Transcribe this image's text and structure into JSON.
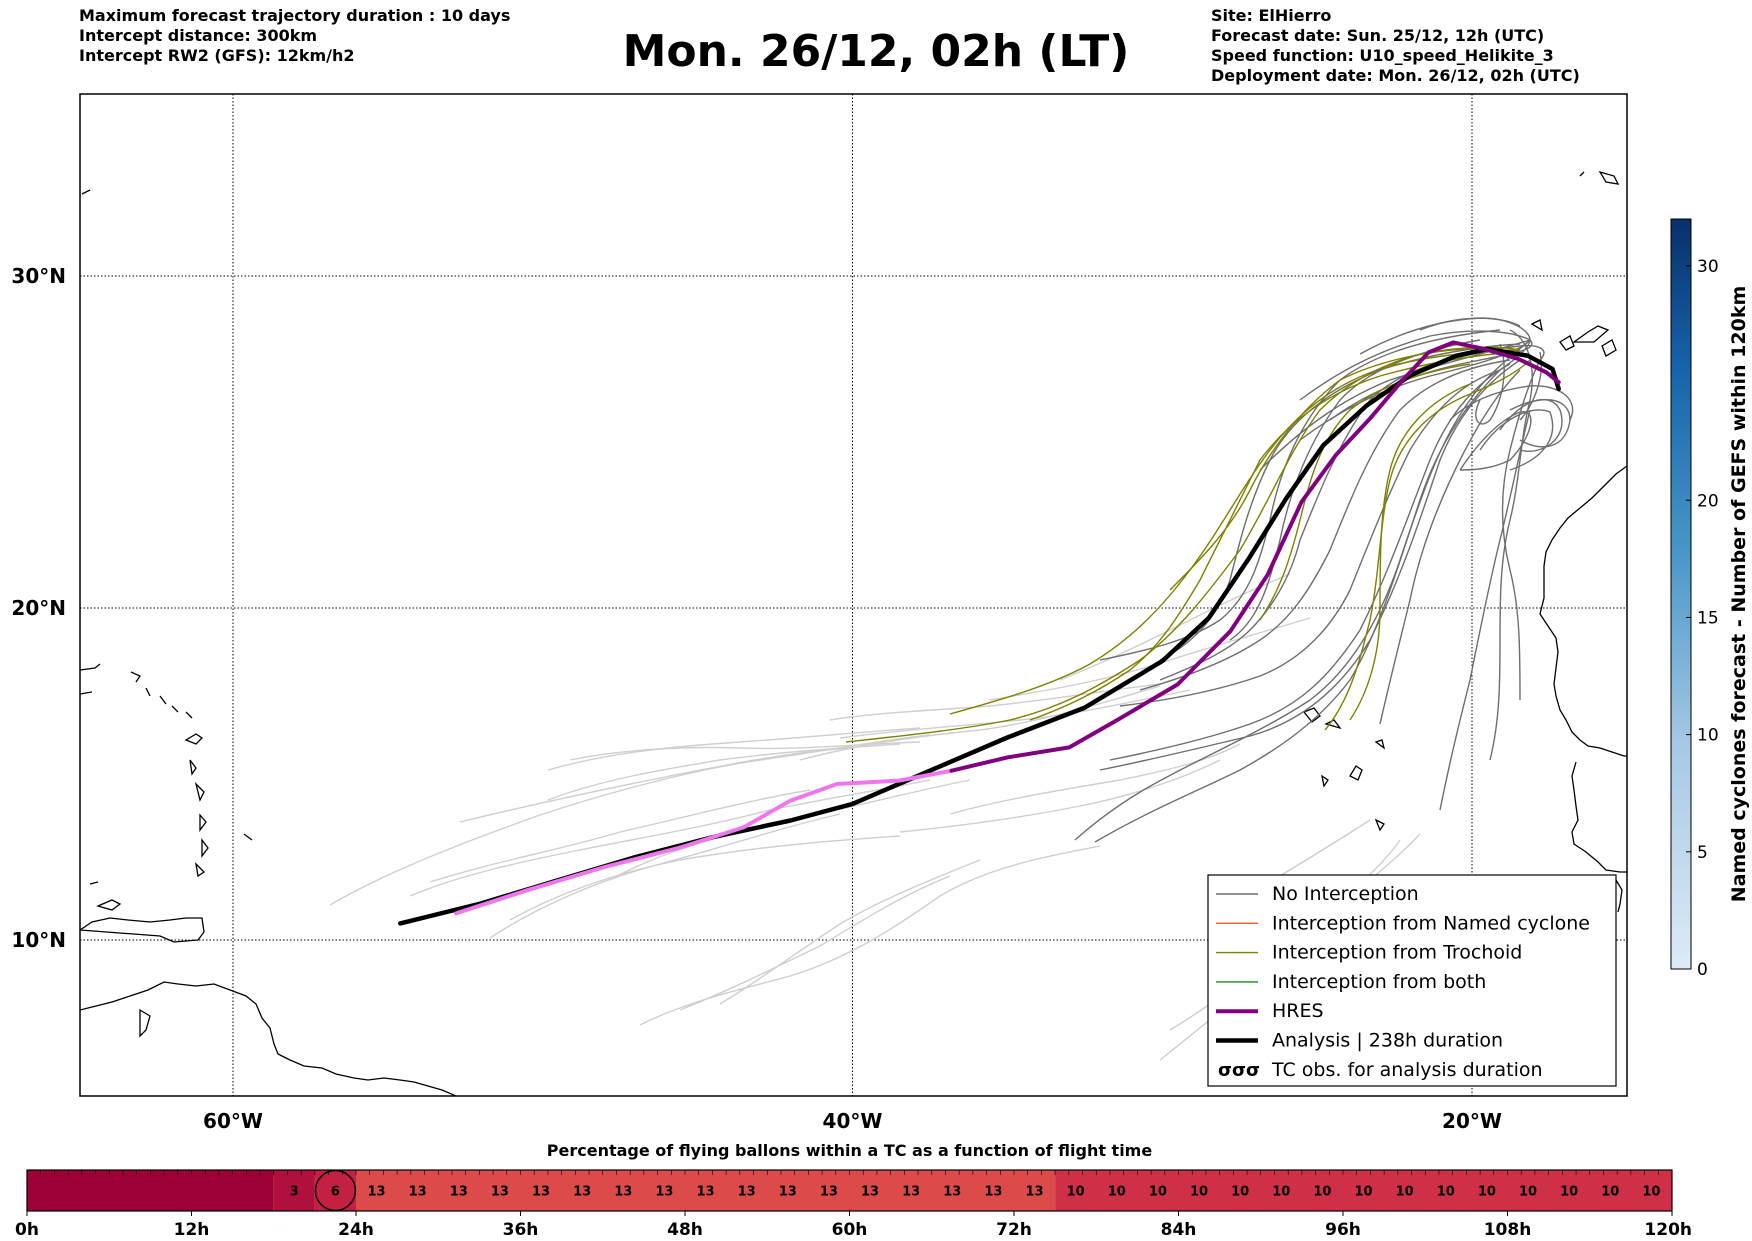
{
  "header": {
    "left_lines": [
      "Maximum forecast trajectory duration : 10 days",
      "Intercept distance: 300km",
      "Intercept RW2 (GFS):  12km/h2"
    ],
    "title": "Mon. 26/12, 02h (LT)",
    "right_lines": [
      "Site: ElHierro",
      "Forecast date: Sun. 25/12, 12h (UTC)",
      "Speed function: U10_speed_Helikite_3",
      "Deployment date: Mon. 26/12, 02h (UTC)"
    ]
  },
  "colors": {
    "no_interception": "#6e6e6e",
    "faded_track": "#cfcfcf",
    "named_cyclone": "#ff5a1f",
    "trochoid": "#808000",
    "both": "#1a8a1a",
    "hres": "#800080",
    "hres_early": "#ee77ee",
    "analysis": "#000000",
    "timeline_dark": "#9e0038",
    "timeline_mid": "#cf3047",
    "timeline_light": "#dd4a4a",
    "colorbar_top": "#08306b",
    "colorbar_bottom": "#deebf7"
  },
  "chart_data": [
    {
      "type": "line",
      "title": "",
      "x_ticks": [
        "60°W",
        "40°W",
        "20°W"
      ],
      "x_tick_values": [
        -60,
        -40,
        -20
      ],
      "y_ticks": [
        "30°N",
        "20°N",
        "10°N"
      ],
      "y_tick_values": [
        30,
        20,
        10
      ],
      "xlim": [
        -65,
        -15
      ],
      "ylim": [
        5.5,
        34.8
      ],
      "grid": true,
      "legend_placement": "bottom-right",
      "legend": [
        "No Interception",
        "Interception from Named cyclone",
        "Interception from Trochoid",
        "Interception from both",
        "HRES",
        "Analysis | 238h duration",
        "TC obs. for analysis duration"
      ],
      "legend_tc_symbol": "σσσ",
      "series": [
        {
          "name": "Analysis | 238h duration",
          "kind": "analysis",
          "points": [
            [
              -54.6,
              10.5
            ],
            [
              -52.0,
              11.1
            ],
            [
              -49.5,
              11.8
            ],
            [
              -47.0,
              12.5
            ],
            [
              -44.5,
              13.1
            ],
            [
              -42.0,
              13.6
            ],
            [
              -40.0,
              14.1
            ],
            [
              -37.5,
              15.1
            ],
            [
              -35.0,
              16.1
            ],
            [
              -32.5,
              17.0
            ],
            [
              -30.0,
              18.4
            ],
            [
              -28.5,
              19.7
            ],
            [
              -27.2,
              21.5
            ],
            [
              -26.0,
              23.3
            ],
            [
              -24.8,
              24.9
            ],
            [
              -23.4,
              26.1
            ],
            [
              -22.0,
              27.0
            ],
            [
              -20.5,
              27.6
            ],
            [
              -19.5,
              27.8
            ],
            [
              -18.2,
              27.6
            ],
            [
              -17.4,
              27.2
            ],
            [
              -17.2,
              26.6
            ]
          ]
        },
        {
          "name": "HRES",
          "kind": "hres_early",
          "points": [
            [
              -52.8,
              10.8
            ],
            [
              -50.5,
              11.5
            ],
            [
              -48.0,
              12.2
            ],
            [
              -45.5,
              12.8
            ],
            [
              -43.5,
              13.4
            ],
            [
              -42.0,
              14.2
            ],
            [
              -40.5,
              14.7
            ],
            [
              -38.5,
              14.8
            ],
            [
              -36.8,
              15.1
            ]
          ]
        },
        {
          "name": "HRES",
          "kind": "hres",
          "points": [
            [
              -36.8,
              15.1
            ],
            [
              -35.0,
              15.5
            ],
            [
              -33.0,
              15.8
            ],
            [
              -31.5,
              16.6
            ],
            [
              -29.5,
              17.7
            ],
            [
              -27.8,
              19.3
            ],
            [
              -26.6,
              21.0
            ],
            [
              -25.5,
              23.2
            ],
            [
              -24.4,
              24.6
            ],
            [
              -23.3,
              25.7
            ],
            [
              -22.3,
              26.8
            ],
            [
              -21.4,
              27.7
            ],
            [
              -20.6,
              28.0
            ],
            [
              -19.6,
              27.8
            ],
            [
              -18.5,
              27.5
            ],
            [
              -17.6,
              27.1
            ],
            [
              -17.2,
              26.8
            ]
          ]
        }
      ]
    },
    {
      "type": "heatmap",
      "title": "Percentage of flying ballons within a TC as a function of flight time",
      "tick_labels": [
        "0h",
        "12h",
        "24h",
        "36h",
        "48h",
        "60h",
        "72h",
        "84h",
        "96h",
        "108h",
        "120h"
      ],
      "tick_values": [
        0,
        12,
        24,
        36,
        48,
        60,
        72,
        84,
        96,
        108,
        120
      ],
      "xlim": [
        0,
        120
      ],
      "cells": [
        {
          "start": 0,
          "end": 18,
          "value": null
        },
        {
          "start": 18,
          "end": 21,
          "value": 3
        },
        {
          "start": 21,
          "end": 24,
          "value": 6
        },
        {
          "start": 24,
          "end": 75,
          "value": 13
        },
        {
          "start": 75,
          "end": 120,
          "value": 10
        }
      ],
      "cell_labels": [
        {
          "t": 19.5,
          "label": "3"
        },
        {
          "t": 22.5,
          "label": "6"
        },
        {
          "t": 25.5,
          "label": "13"
        },
        {
          "t": 28.5,
          "label": "13"
        },
        {
          "t": 31.5,
          "label": "13"
        },
        {
          "t": 34.5,
          "label": "13"
        },
        {
          "t": 37.5,
          "label": "13"
        },
        {
          "t": 40.5,
          "label": "13"
        },
        {
          "t": 43.5,
          "label": "13"
        },
        {
          "t": 46.5,
          "label": "13"
        },
        {
          "t": 49.5,
          "label": "13"
        },
        {
          "t": 52.5,
          "label": "13"
        },
        {
          "t": 55.5,
          "label": "13"
        },
        {
          "t": 58.5,
          "label": "13"
        },
        {
          "t": 61.5,
          "label": "13"
        },
        {
          "t": 64.5,
          "label": "13"
        },
        {
          "t": 67.5,
          "label": "13"
        },
        {
          "t": 70.5,
          "label": "13"
        },
        {
          "t": 73.5,
          "label": "13"
        },
        {
          "t": 76.5,
          "label": "10"
        },
        {
          "t": 79.5,
          "label": "10"
        },
        {
          "t": 82.5,
          "label": "10"
        },
        {
          "t": 85.5,
          "label": "10"
        },
        {
          "t": 88.5,
          "label": "10"
        },
        {
          "t": 91.5,
          "label": "10"
        },
        {
          "t": 94.5,
          "label": "10"
        },
        {
          "t": 97.5,
          "label": "10"
        },
        {
          "t": 100.5,
          "label": "10"
        },
        {
          "t": 103.5,
          "label": "10"
        },
        {
          "t": 106.5,
          "label": "10"
        },
        {
          "t": 109.5,
          "label": "10"
        },
        {
          "t": 112.5,
          "label": "10"
        },
        {
          "t": 115.5,
          "label": "10"
        },
        {
          "t": 118.5,
          "label": "10"
        }
      ],
      "highlight_t": 22.5
    },
    {
      "type": "colorbar",
      "label": "Named cyclones forecast - Number of GEFS within 120km",
      "ticks": [
        "0",
        "5",
        "10",
        "15",
        "20",
        "30"
      ],
      "tick_values": [
        0,
        5,
        10,
        15,
        20,
        30
      ],
      "range": [
        0,
        32
      ]
    }
  ]
}
